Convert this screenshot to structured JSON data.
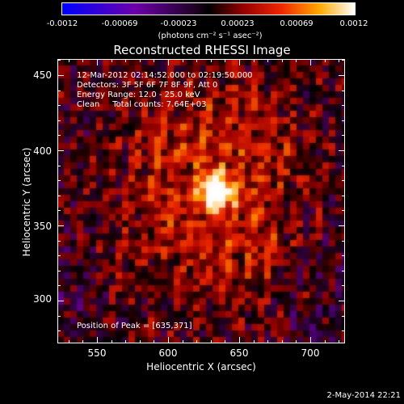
{
  "colorbar": {
    "ticks": [
      "-0.0012",
      "-0.00069",
      "-0.00023",
      "0.00023",
      "0.00069",
      "0.0012"
    ],
    "unit": "(photons cm⁻² s⁻¹ asec⁻²)"
  },
  "title": "Reconstructed RHESSI Image",
  "info": {
    "time": "12-Mar-2012 02:14:52.000 to 02:19:50.000",
    "detectors": "Detectors: 3F 5F 6F 7F 8F 9F, Att 0",
    "energy": "Energy Range: 12.0 - 25.0 keV",
    "clean": "Clean     Total counts: 7.64E+03",
    "peak": "Position of Peak = [635,371]"
  },
  "axes": {
    "x_label": "Heliocentric X (arcsec)",
    "y_label": "Heliocentric Y (arcsec)",
    "x_ticks": [
      "550",
      "600",
      "650",
      "700"
    ],
    "y_ticks": [
      "450",
      "400",
      "350",
      "300"
    ]
  },
  "footer": {
    "date": "2-May-2014 22:21"
  },
  "colors": {
    "background": "#000000",
    "text": "#ffffff"
  }
}
